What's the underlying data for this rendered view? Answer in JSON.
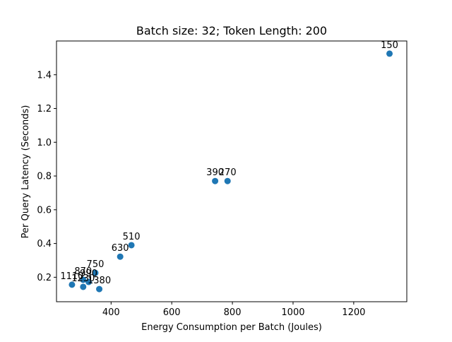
{
  "chart_data": {
    "type": "scatter",
    "title": "Batch size: 32; Token Length: 200",
    "xlabel": "Energy Consumption per Batch (Joules)",
    "ylabel": "Per Query Latency (Seconds)",
    "xlim": [
      220,
      1375
    ],
    "ylim": [
      0.055,
      1.6
    ],
    "xticks": [
      400,
      600,
      800,
      1000,
      1200
    ],
    "yticks": [
      0.2,
      0.4,
      0.6,
      0.8,
      1.0,
      1.2,
      1.4
    ],
    "color": "#1f77b4",
    "points": [
      {
        "label": "150",
        "x": 1318,
        "y": 1.525
      },
      {
        "label": "390",
        "x": 743,
        "y": 0.77
      },
      {
        "label": "270",
        "x": 784,
        "y": 0.77
      },
      {
        "label": "510",
        "x": 467,
        "y": 0.39
      },
      {
        "label": "630",
        "x": 430,
        "y": 0.322
      },
      {
        "label": "750",
        "x": 348,
        "y": 0.226
      },
      {
        "label": "870",
        "x": 308,
        "y": 0.185
      },
      {
        "label": "990",
        "x": 326,
        "y": 0.172
      },
      {
        "label": "1110",
        "x": 271,
        "y": 0.156
      },
      {
        "label": "1230",
        "x": 308,
        "y": 0.143
      },
      {
        "label": "1380",
        "x": 361,
        "y": 0.13
      }
    ]
  }
}
